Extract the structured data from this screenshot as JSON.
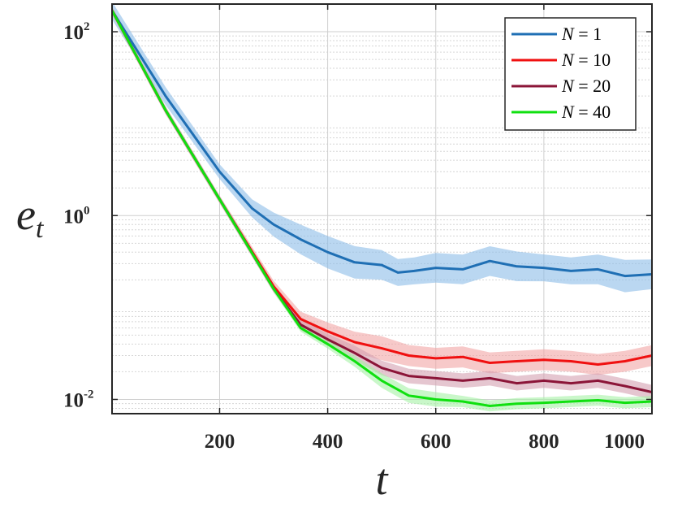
{
  "chart_data": {
    "type": "line",
    "xlabel": "t",
    "ylabel": "e",
    "ylabel_sub": "t",
    "xlim": [
      1,
      1000
    ],
    "ylim": [
      0.007,
      200
    ],
    "yscale": "log",
    "grid": true,
    "minor_grid": true,
    "legend_position": "top-right",
    "x_ticks": [
      {
        "value": 200,
        "label": "200"
      },
      {
        "value": 400,
        "label": "400"
      },
      {
        "value": 600,
        "label": "600"
      },
      {
        "value": 800,
        "label": "800"
      },
      {
        "value": 1000,
        "label": "1000"
      }
    ],
    "y_ticks": [
      {
        "value": 0.01,
        "base": "10",
        "exp": "-2"
      },
      {
        "value": 1,
        "base": "10",
        "exp": "0"
      },
      {
        "value": 100,
        "base": "10",
        "exp": "2"
      }
    ],
    "series": [
      {
        "name": "N = 1",
        "legend_lhs": "N",
        "legend_rhs": "= 1",
        "color": "#1f6fb4",
        "band_color": "#8cbce8",
        "x": [
          1,
          100,
          200,
          260,
          300,
          350,
          400,
          450,
          500,
          530,
          560,
          600,
          650,
          700,
          750,
          800,
          850,
          900,
          950,
          1000
        ],
        "y": [
          170,
          20,
          3.0,
          1.2,
          0.8,
          0.55,
          0.4,
          0.31,
          0.29,
          0.24,
          0.25,
          0.27,
          0.26,
          0.32,
          0.28,
          0.27,
          0.25,
          0.26,
          0.22,
          0.23
        ],
        "band": [
          1.25,
          1.25,
          1.2,
          1.25,
          1.35,
          1.45,
          1.5,
          1.5,
          1.45,
          1.4,
          1.4,
          1.45,
          1.45,
          1.45,
          1.45,
          1.4,
          1.4,
          1.45,
          1.5,
          1.45
        ]
      },
      {
        "name": "N = 10",
        "legend_lhs": "N",
        "legend_rhs": "= 10",
        "color": "#f01010",
        "band_color": "#f2a5a5",
        "x": [
          1,
          100,
          200,
          300,
          350,
          400,
          450,
          500,
          550,
          600,
          650,
          700,
          750,
          800,
          850,
          900,
          950,
          1000
        ],
        "y": [
          170,
          14,
          1.5,
          0.17,
          0.075,
          0.055,
          0.042,
          0.036,
          0.03,
          0.028,
          0.029,
          0.025,
          0.026,
          0.027,
          0.026,
          0.024,
          0.026,
          0.03
        ],
        "band": [
          1.1,
          1.1,
          1.1,
          1.15,
          1.2,
          1.25,
          1.3,
          1.35,
          1.3,
          1.3,
          1.3,
          1.3,
          1.3,
          1.3,
          1.3,
          1.3,
          1.3,
          1.3
        ]
      },
      {
        "name": "N = 20",
        "legend_lhs": "N",
        "legend_rhs": "= 20",
        "color": "#8b1538",
        "band_color": "#d4a0b0",
        "x": [
          1,
          100,
          200,
          300,
          350,
          400,
          450,
          500,
          550,
          600,
          650,
          700,
          750,
          800,
          850,
          900,
          950,
          1000
        ],
        "y": [
          170,
          14,
          1.5,
          0.16,
          0.065,
          0.045,
          0.032,
          0.022,
          0.018,
          0.017,
          0.016,
          0.017,
          0.015,
          0.016,
          0.015,
          0.016,
          0.014,
          0.012
        ],
        "band": [
          1.1,
          1.1,
          1.1,
          1.1,
          1.15,
          1.15,
          1.2,
          1.2,
          1.2,
          1.2,
          1.2,
          1.2,
          1.2,
          1.2,
          1.2,
          1.2,
          1.2,
          1.2
        ]
      },
      {
        "name": "N = 40",
        "legend_lhs": "N",
        "legend_rhs": "= 40",
        "color": "#10e010",
        "band_color": "#a5f2a5",
        "x": [
          1,
          100,
          200,
          300,
          350,
          400,
          450,
          500,
          550,
          600,
          650,
          700,
          750,
          800,
          850,
          900,
          950,
          1000
        ],
        "y": [
          170,
          14,
          1.5,
          0.16,
          0.06,
          0.04,
          0.026,
          0.016,
          0.011,
          0.01,
          0.0095,
          0.0085,
          0.009,
          0.0092,
          0.0095,
          0.0098,
          0.0092,
          0.0095
        ],
        "band": [
          1.08,
          1.08,
          1.08,
          1.08,
          1.1,
          1.12,
          1.15,
          1.2,
          1.2,
          1.2,
          1.15,
          1.15,
          1.15,
          1.15,
          1.15,
          1.15,
          1.15,
          1.15
        ]
      }
    ]
  }
}
